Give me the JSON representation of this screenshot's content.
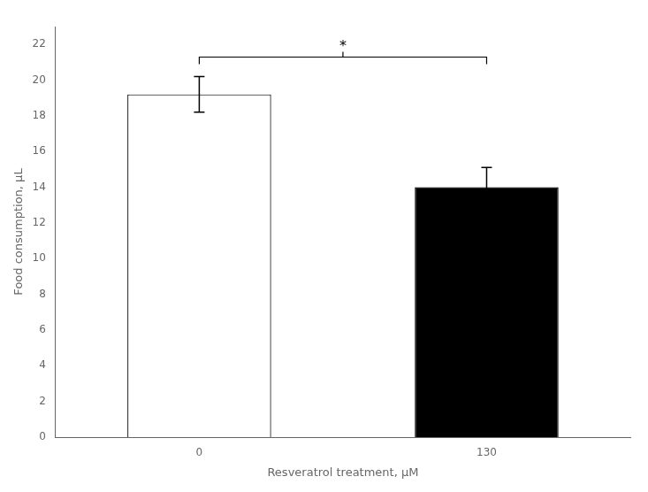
{
  "chart_data": {
    "type": "bar",
    "categories": [
      "0",
      "130"
    ],
    "values": [
      19.2,
      14.0
    ],
    "errors": [
      1.0,
      1.1
    ],
    "colors": [
      "#ffffff",
      "#000000"
    ],
    "xlabel": "Resveratrol treatment, μM",
    "ylabel": "Food consumption, μL",
    "ylim": [
      0,
      23
    ],
    "yticks": [
      0,
      2,
      4,
      6,
      8,
      10,
      12,
      14,
      16,
      18,
      20,
      22
    ],
    "grid": false,
    "annotations": [
      {
        "text": "*",
        "from": "0",
        "to": "130"
      }
    ]
  }
}
